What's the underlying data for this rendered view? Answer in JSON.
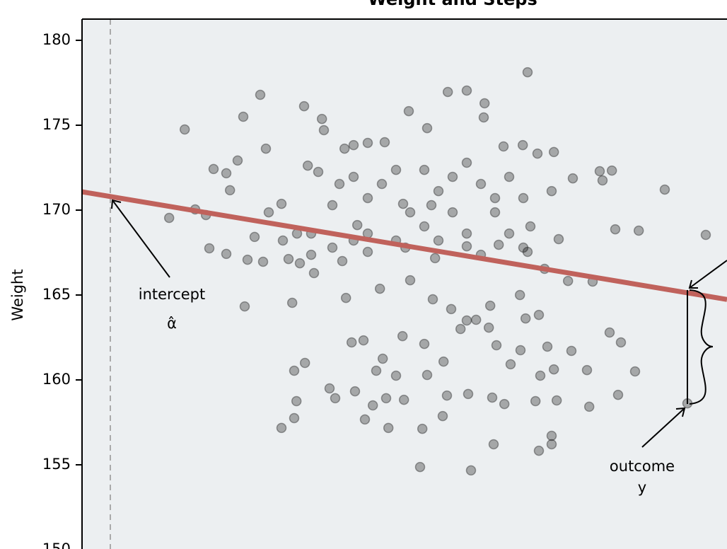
{
  "chart_data": {
    "type": "scatter",
    "title": "Weight and Steps",
    "y_label": "Weight",
    "xlim": [
      -1,
      21.8
    ],
    "ylim": [
      150,
      180
    ],
    "yticks": [
      150,
      155,
      160,
      165,
      170,
      175,
      180
    ],
    "color": "#000000",
    "x": [
      2.08,
      2.63,
      3.0,
      3.38,
      3.65,
      4.1,
      4.23,
      4.5,
      4.7,
      5.3,
      5.5,
      6.05,
      6.85,
      6.98,
      7.35,
      7.48,
      7.55,
      8.28,
      8.6,
      9.1,
      9.7,
      10.55,
      11.2,
      11.93,
      12.6,
      13.23,
      13.2,
      13.9,
      14.58,
      14.75,
      15.1,
      15.68,
      16.35,
      17.3,
      17.4,
      17.73,
      19.6,
      21.05,
      4.1,
      4.85,
      5.4,
      6.3,
      6.7,
      7.2,
      8.2,
      9.1,
      10.43,
      11.48,
      12.6,
      13.73,
      14.75,
      15.85,
      17.05,
      17.85,
      18.68,
      3.5,
      4.75,
      6.43,
      8.33,
      9.53,
      10.6,
      11.4,
      12.05,
      13.43,
      14.48,
      15.15,
      16.18,
      6.5,
      6.88,
      7.75,
      8.53,
      8.95,
      9.63,
      10.33,
      11.1,
      11.78,
      12.6,
      12.93,
      13.65,
      14.5,
      15.2,
      16.3,
      16.85,
      17.65,
      18.05,
      18.55,
      6.58,
      6.05,
      6.5,
      7.95,
      8.65,
      9.28,
      9.75,
      10.38,
      11.2,
      11.9,
      12.65,
      13.5,
      13.93,
      15.03,
      15.78,
      16.93,
      17.95,
      9.0,
      9.83,
      11.03,
      11.75,
      13.55,
      15.15,
      15.6,
      15.6,
      10.95,
      12.75,
      9.4,
      10.1,
      12.38,
      13.38,
      14.68,
      15.45,
      15.68,
      14.15,
      8.73,
      10.35,
      11.1,
      12.1,
      13.6,
      14.85,
      7.85,
      7.1,
      5.6,
      5.1,
      6.6,
      9.6,
      11.6,
      13.1,
      14.1,
      10.1,
      11.1,
      12.1,
      12.6,
      8.6,
      8.1,
      9.1,
      10.6,
      11.35,
      13.6,
      14.6,
      15.6,
      9.1,
      10.1,
      7.85,
      12.6,
      14.1,
      7.1,
      11.6,
      13.1,
      15.35,
      14.6,
      6.1,
      8.6,
      20.4
    ],
    "values": [
      169.54,
      174.75,
      170.04,
      169.71,
      172.42,
      172.17,
      171.17,
      172.92,
      175.5,
      176.79,
      173.62,
      170.37,
      176.12,
      172.62,
      172.25,
      175.37,
      174.71,
      173.62,
      173.83,
      173.96,
      174.0,
      175.83,
      174.83,
      176.96,
      177.04,
      176.29,
      175.46,
      173.75,
      173.83,
      178.12,
      173.33,
      173.42,
      171.87,
      172.29,
      171.75,
      172.33,
      171.21,
      168.54,
      167.42,
      167.08,
      166.96,
      167.12,
      166.87,
      166.29,
      167.0,
      167.54,
      167.79,
      167.17,
      167.87,
      167.96,
      167.54,
      168.29,
      165.79,
      168.87,
      168.79,
      167.75,
      164.33,
      164.54,
      164.83,
      165.37,
      165.87,
      164.75,
      164.17,
      164.37,
      165.0,
      163.83,
      165.83,
      160.54,
      161.0,
      159.5,
      162.21,
      162.33,
      161.25,
      162.58,
      162.12,
      161.08,
      163.5,
      163.54,
      162.04,
      161.75,
      160.25,
      161.71,
      160.58,
      162.79,
      162.21,
      160.5,
      158.75,
      157.17,
      157.75,
      158.92,
      159.33,
      158.5,
      158.92,
      158.83,
      160.29,
      159.08,
      159.17,
      158.96,
      158.58,
      158.75,
      158.79,
      158.42,
      159.12,
      157.67,
      157.17,
      157.12,
      157.87,
      156.21,
      155.83,
      156.21,
      156.71,
      154.87,
      154.67,
      160.54,
      160.25,
      163.0,
      163.08,
      163.62,
      161.96,
      160.62,
      160.92,
      169.12,
      170.37,
      169.04,
      169.87,
      169.87,
      169.04,
      170.29,
      168.62,
      169.87,
      168.42,
      168.62,
      171.54,
      171.12,
      171.54,
      171.96,
      172.37,
      172.37,
      171.96,
      172.79,
      171.96,
      171.54,
      170.71,
      169.87,
      170.29,
      170.71,
      170.71,
      171.12,
      168.62,
      168.21,
      167.79,
      168.62,
      168.62,
      167.37,
      168.21,
      167.37,
      166.54,
      167.79,
      168.21,
      168.21,
      158.62
    ],
    "line": {
      "intercept": 170.8,
      "slope": -0.278,
      "color": "#c0625c"
    },
    "annotations": {
      "intercept": "intercept",
      "alpha_hat": "α̂",
      "outcome": "outcome",
      "y": "y"
    }
  }
}
